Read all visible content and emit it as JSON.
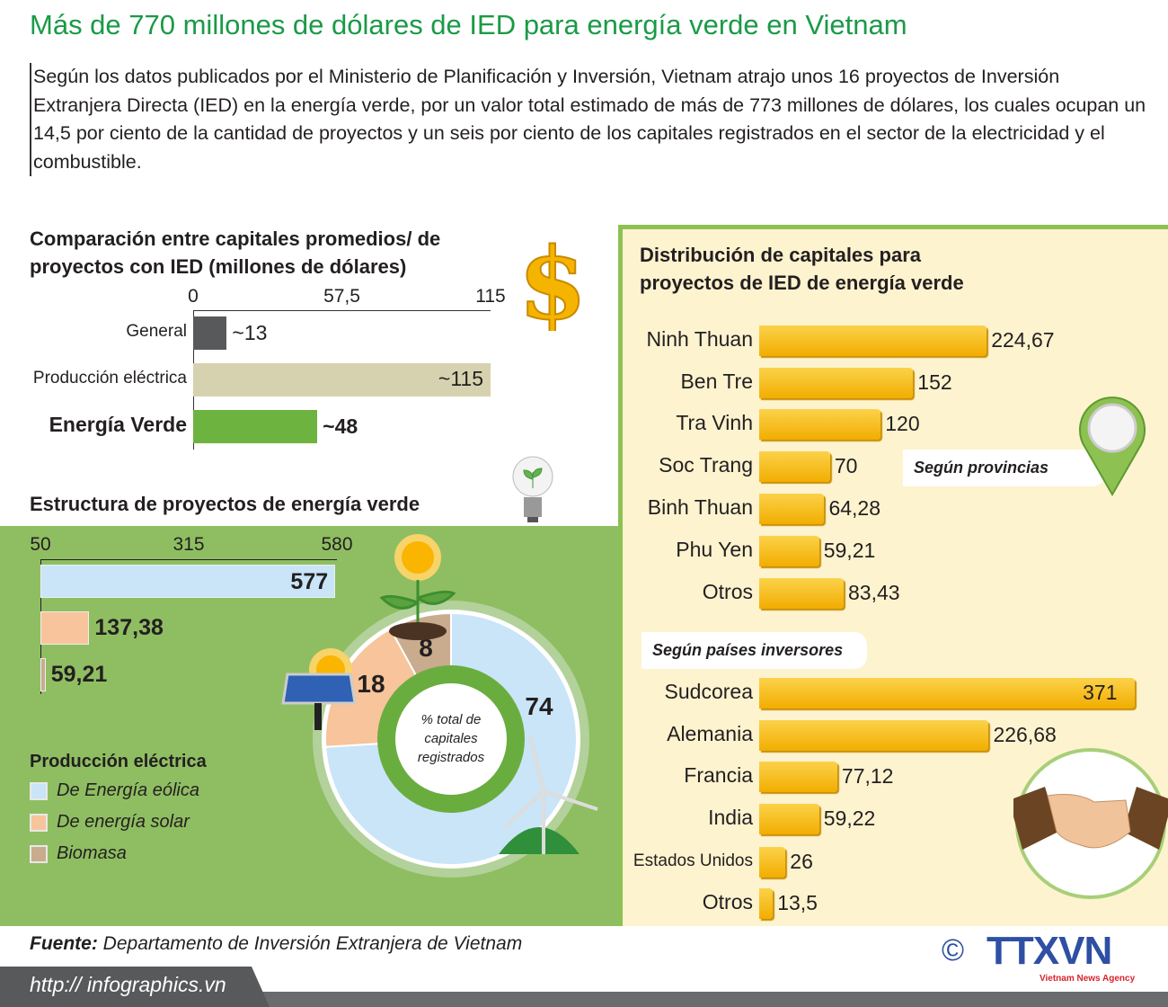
{
  "title": "Más de 770 millones de dólares de IED para energía verde en Vietnam",
  "intro": "Según los datos publicados por el Ministerio de Planificación y Inversión,  Vietnam atrajo unos 16 proyectos de Inversión Extranjera Directa (IED) en la energía verde, por un valor total estimado de más de 773 millones de dólares, los cuales ocupan un 14,5 por ciento de la cantidad de proyectos y un seis por ciento de los capitales registrados en el sector de la electricidad y el combustible.",
  "colors": {
    "title": "#1a9a47",
    "panel_green": "#8fbe62",
    "panel_yellow": "#fdf3cf",
    "bar_yellow": "#f5b800"
  },
  "chart_data": [
    {
      "type": "bar",
      "orientation": "horizontal",
      "title": "Comparación entre capitales promedios/ de proyectos con IED (millones de dólares)",
      "tick_labels": [
        "0",
        "57,5",
        "115"
      ],
      "xlim": [
        0,
        115
      ],
      "categories": [
        "General",
        "Producción eléctrica",
        "Energía Verde"
      ],
      "values": [
        13,
        115,
        48
      ],
      "labels": [
        "~13",
        "~115",
        "~48"
      ],
      "colors": [
        "#58595b",
        "#d6d2b0",
        "#6db33f"
      ]
    },
    {
      "type": "bar",
      "orientation": "horizontal",
      "title": "Estructura de proyectos de energía verde",
      "tick_labels": [
        "50",
        "315",
        "580"
      ],
      "xlim": [
        50,
        580
      ],
      "categories": [
        "De Energía eólica",
        "De energía solar",
        "Biomasa"
      ],
      "values": [
        577,
        137.38,
        59.21
      ],
      "labels": [
        "577",
        "137,38",
        "59,21"
      ],
      "colors": [
        "#c9e5f7",
        "#f7c49b",
        "#c9ab8e"
      ]
    },
    {
      "type": "pie",
      "donut": true,
      "center_label": "% total de capitales registrados",
      "legend_title": "Producción eléctrica",
      "categories": [
        "De Energía eólica",
        "De energía solar",
        "Biomasa"
      ],
      "values": [
        74,
        18,
        8
      ],
      "labels": [
        "74",
        "18",
        "8"
      ],
      "colors": [
        "#c9e5f7",
        "#f7c49b",
        "#c9ab8e"
      ]
    },
    {
      "type": "bar",
      "orientation": "horizontal",
      "title": "Distribución de capitales para proyectos de IED de energía verde",
      "group_label": "Según provincias",
      "categories": [
        "Ninh Thuan",
        "Ben Tre",
        "Tra Vinh",
        "Soc Trang",
        "Binh Thuan",
        "Phu Yen",
        "Otros"
      ],
      "values": [
        224.67,
        152,
        120,
        70,
        64.28,
        59.21,
        83.43
      ],
      "labels": [
        "224,67",
        "152",
        "120",
        "70",
        "64,28",
        "59,21",
        "83,43"
      ]
    },
    {
      "type": "bar",
      "orientation": "horizontal",
      "group_label": "Según países inversores",
      "categories": [
        "Sudcorea",
        "Alemania",
        "Francia",
        "India",
        "Estados Unidos",
        "Otros"
      ],
      "values": [
        371,
        226.68,
        77.12,
        59.22,
        26,
        13.5
      ],
      "labels": [
        "371",
        "226,68",
        "77,12",
        "59,22",
        "26",
        "13,5"
      ]
    }
  ],
  "footer": {
    "source_label": "Fuente:",
    "source": "Departamento de Inversión Extranjera de Vietnam",
    "url": "http:// infographics.vn",
    "logo": "TTXVN",
    "logo_sub": "Vietnam News Agency",
    "copyright": "©"
  }
}
